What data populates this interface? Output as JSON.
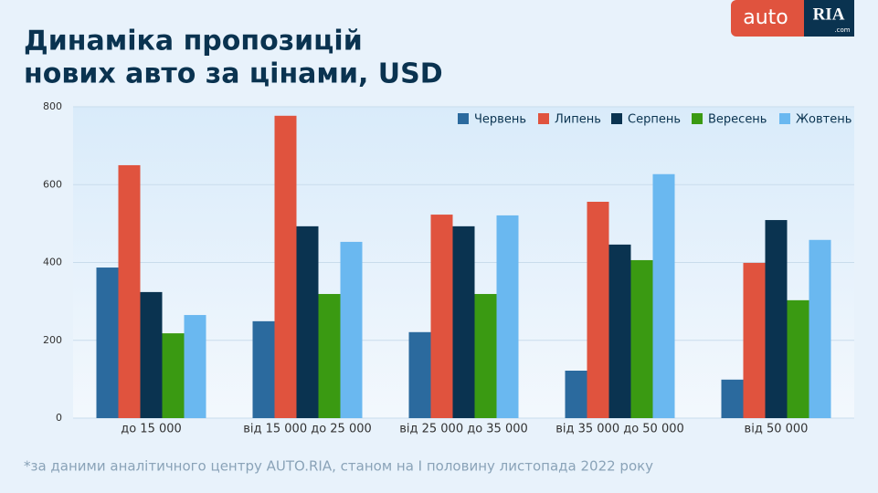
{
  "logo": {
    "left": "auto",
    "right": "RIA",
    "sub": ".com"
  },
  "chart_data": {
    "type": "bar",
    "title": [
      "Динаміка пропозицій",
      "нових авто за цінами, USD"
    ],
    "categories": [
      "до 15 000",
      "від 15 000 до 25 000",
      "від 25 000 до 35 000",
      "від 35 000 до 50 000",
      "від 50 000"
    ],
    "series": [
      {
        "name": "Червень",
        "color": "#2b6a9e",
        "values": [
          387,
          249,
          221,
          122,
          99
        ]
      },
      {
        "name": "Липень",
        "color": "#e0533e",
        "values": [
          650,
          777,
          523,
          556,
          399
        ]
      },
      {
        "name": "Серпень",
        "color": "#0a3350",
        "values": [
          324,
          493,
          493,
          446,
          509
        ]
      },
      {
        "name": "Вересень",
        "color": "#3a9a12",
        "values": [
          218,
          319,
          319,
          406,
          303
        ]
      },
      {
        "name": "Жовтень",
        "color": "#6ab8f0",
        "values": [
          265,
          453,
          521,
          627,
          458
        ]
      }
    ],
    "ylim": [
      0,
      800
    ],
    "yticks": [
      0,
      200,
      400,
      600,
      800
    ],
    "grid": true,
    "legend": "top-right",
    "footnote": "*за даними аналітичного центру AUTO.RIA, станом на I половину листопада 2022 року"
  }
}
